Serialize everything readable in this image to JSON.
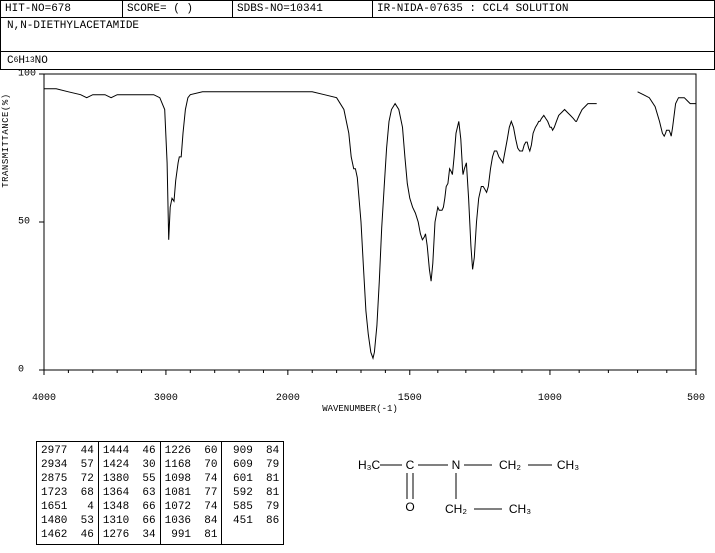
{
  "header": {
    "hit_no": "HIT-NO=678",
    "score": "SCORE=  (  )",
    "sdbs_no": "SDBS-NO=10341",
    "ir_info": "IR-NIDA-07635 : CCL4 SOLUTION"
  },
  "compound_name": "N,N-DIETHYLACETAMIDE",
  "formula_parts": {
    "c": "C",
    "c_n": "6",
    "h": "H",
    "h_n": "13",
    "n": "N",
    "o": "O"
  },
  "chart": {
    "type": "line",
    "ylabel": "TRANSMITTANCE(%)",
    "xlabel": "WAVENUMBER(-1)",
    "xlim": [
      4000,
      400
    ],
    "ylim": [
      0,
      100
    ],
    "xticks": [
      4000,
      3000,
      2000,
      1500,
      1000,
      500
    ],
    "yticks": [
      0,
      50,
      100
    ],
    "line_color": "#000000",
    "background_color": "#ffffff",
    "border_color": "#000000",
    "data": [
      [
        4000,
        95
      ],
      [
        3900,
        95
      ],
      [
        3800,
        94
      ],
      [
        3700,
        93
      ],
      [
        3650,
        92
      ],
      [
        3600,
        93
      ],
      [
        3550,
        93
      ],
      [
        3500,
        93
      ],
      [
        3450,
        92
      ],
      [
        3400,
        93
      ],
      [
        3350,
        93
      ],
      [
        3300,
        93
      ],
      [
        3250,
        93
      ],
      [
        3200,
        93
      ],
      [
        3150,
        93
      ],
      [
        3100,
        93
      ],
      [
        3050,
        92
      ],
      [
        3010,
        88
      ],
      [
        2990,
        70
      ],
      [
        2977,
        44
      ],
      [
        2965,
        55
      ],
      [
        2950,
        58
      ],
      [
        2934,
        57
      ],
      [
        2920,
        64
      ],
      [
        2900,
        70
      ],
      [
        2890,
        72
      ],
      [
        2875,
        72
      ],
      [
        2860,
        80
      ],
      [
        2840,
        88
      ],
      [
        2820,
        92
      ],
      [
        2800,
        93
      ],
      [
        2700,
        94
      ],
      [
        2600,
        94
      ],
      [
        2500,
        94
      ],
      [
        2400,
        94
      ],
      [
        2300,
        94
      ],
      [
        2200,
        94
      ],
      [
        2100,
        94
      ],
      [
        2000,
        94
      ],
      [
        1950,
        94
      ],
      [
        1900,
        94
      ],
      [
        1850,
        93
      ],
      [
        1800,
        92
      ],
      [
        1770,
        88
      ],
      [
        1750,
        80
      ],
      [
        1740,
        72
      ],
      [
        1730,
        68
      ],
      [
        1723,
        68
      ],
      [
        1715,
        65
      ],
      [
        1700,
        50
      ],
      [
        1690,
        35
      ],
      [
        1680,
        20
      ],
      [
        1670,
        12
      ],
      [
        1660,
        6
      ],
      [
        1651,
        4
      ],
      [
        1645,
        6
      ],
      [
        1635,
        15
      ],
      [
        1625,
        30
      ],
      [
        1615,
        48
      ],
      [
        1605,
        62
      ],
      [
        1595,
        75
      ],
      [
        1585,
        84
      ],
      [
        1575,
        88
      ],
      [
        1560,
        90
      ],
      [
        1545,
        88
      ],
      [
        1530,
        82
      ],
      [
        1520,
        72
      ],
      [
        1510,
        63
      ],
      [
        1500,
        58
      ],
      [
        1490,
        55
      ],
      [
        1480,
        53
      ],
      [
        1470,
        50
      ],
      [
        1462,
        46
      ],
      [
        1455,
        44
      ],
      [
        1448,
        45
      ],
      [
        1444,
        46
      ],
      [
        1438,
        42
      ],
      [
        1430,
        34
      ],
      [
        1424,
        30
      ],
      [
        1418,
        36
      ],
      [
        1410,
        50
      ],
      [
        1400,
        55
      ],
      [
        1395,
        54
      ],
      [
        1390,
        54
      ],
      [
        1385,
        54
      ],
      [
        1380,
        55
      ],
      [
        1375,
        58
      ],
      [
        1370,
        62
      ],
      [
        1364,
        63
      ],
      [
        1358,
        68
      ],
      [
        1352,
        67
      ],
      [
        1348,
        66
      ],
      [
        1342,
        72
      ],
      [
        1335,
        80
      ],
      [
        1325,
        84
      ],
      [
        1318,
        78
      ],
      [
        1312,
        68
      ],
      [
        1310,
        66
      ],
      [
        1305,
        68
      ],
      [
        1298,
        70
      ],
      [
        1290,
        58
      ],
      [
        1282,
        42
      ],
      [
        1276,
        34
      ],
      [
        1270,
        38
      ],
      [
        1262,
        50
      ],
      [
        1254,
        58
      ],
      [
        1245,
        62
      ],
      [
        1238,
        62
      ],
      [
        1232,
        61
      ],
      [
        1226,
        60
      ],
      [
        1220,
        62
      ],
      [
        1212,
        68
      ],
      [
        1205,
        72
      ],
      [
        1198,
        74
      ],
      [
        1190,
        74
      ],
      [
        1182,
        72
      ],
      [
        1175,
        71
      ],
      [
        1168,
        70
      ],
      [
        1160,
        74
      ],
      [
        1152,
        78
      ],
      [
        1145,
        82
      ],
      [
        1138,
        84
      ],
      [
        1130,
        82
      ],
      [
        1122,
        78
      ],
      [
        1115,
        75
      ],
      [
        1108,
        74
      ],
      [
        1102,
        74
      ],
      [
        1098,
        74
      ],
      [
        1092,
        76
      ],
      [
        1086,
        77
      ],
      [
        1081,
        77
      ],
      [
        1076,
        75
      ],
      [
        1072,
        74
      ],
      [
        1066,
        76
      ],
      [
        1060,
        80
      ],
      [
        1052,
        82
      ],
      [
        1045,
        83
      ],
      [
        1040,
        84
      ],
      [
        1036,
        84
      ],
      [
        1030,
        85
      ],
      [
        1022,
        86
      ],
      [
        1015,
        85
      ],
      [
        1008,
        84
      ],
      [
        1000,
        82
      ],
      [
        995,
        82
      ],
      [
        991,
        81
      ],
      [
        985,
        82
      ],
      [
        978,
        84
      ],
      [
        970,
        86
      ],
      [
        960,
        87
      ],
      [
        950,
        88
      ],
      [
        940,
        87
      ],
      [
        930,
        86
      ],
      [
        920,
        85
      ],
      [
        912,
        84
      ],
      [
        909,
        84
      ],
      [
        900,
        86
      ],
      [
        890,
        88
      ],
      [
        880,
        89
      ],
      [
        870,
        90
      ],
      [
        860,
        90
      ],
      [
        850,
        90
      ],
      [
        840,
        90
      ],
      [
        830,
        84
      ],
      [
        790,
        84
      ],
      [
        720,
        94
      ],
      [
        700,
        94
      ],
      [
        680,
        93
      ],
      [
        660,
        92
      ],
      [
        640,
        89
      ],
      [
        625,
        84
      ],
      [
        615,
        80
      ],
      [
        609,
        79
      ],
      [
        604,
        80
      ],
      [
        601,
        81
      ],
      [
        596,
        81
      ],
      [
        592,
        81
      ],
      [
        588,
        80
      ],
      [
        585,
        79
      ],
      [
        580,
        82
      ],
      [
        575,
        86
      ],
      [
        570,
        90
      ],
      [
        560,
        92
      ],
      [
        550,
        92
      ],
      [
        540,
        92
      ],
      [
        530,
        91
      ],
      [
        520,
        90
      ],
      [
        510,
        90
      ],
      [
        500,
        90
      ],
      [
        480,
        89
      ],
      [
        465,
        87
      ],
      [
        455,
        86
      ],
      [
        451,
        86
      ],
      [
        445,
        88
      ],
      [
        435,
        90
      ],
      [
        420,
        90
      ],
      [
        410,
        90
      ],
      [
        400,
        90
      ]
    ]
  },
  "peak_table": {
    "columns": [
      [
        [
          "2977",
          "44"
        ],
        [
          "2934",
          "57"
        ],
        [
          "2875",
          "72"
        ],
        [
          "1723",
          "68"
        ],
        [
          "1651",
          " 4"
        ],
        [
          "1480",
          "53"
        ],
        [
          "1462",
          "46"
        ]
      ],
      [
        [
          "1444",
          "46"
        ],
        [
          "1424",
          "30"
        ],
        [
          "1380",
          "55"
        ],
        [
          "1364",
          "63"
        ],
        [
          "1348",
          "66"
        ],
        [
          "1310",
          "66"
        ],
        [
          "1276",
          "34"
        ]
      ],
      [
        [
          "1226",
          "60"
        ],
        [
          "1168",
          "70"
        ],
        [
          "1098",
          "74"
        ],
        [
          "1081",
          "77"
        ],
        [
          "1072",
          "74"
        ],
        [
          "1036",
          "84"
        ],
        [
          " 991",
          "81"
        ]
      ],
      [
        [
          " 909",
          "84"
        ],
        [
          " 609",
          "79"
        ],
        [
          " 601",
          "81"
        ],
        [
          " 592",
          "81"
        ],
        [
          " 585",
          "79"
        ],
        [
          " 451",
          "86"
        ]
      ]
    ]
  },
  "structure": {
    "labels": {
      "h3c": "H₃C",
      "ch2": "CH₂",
      "ch3": "CH₃",
      "c": "C",
      "n": "N",
      "o": "O"
    }
  }
}
